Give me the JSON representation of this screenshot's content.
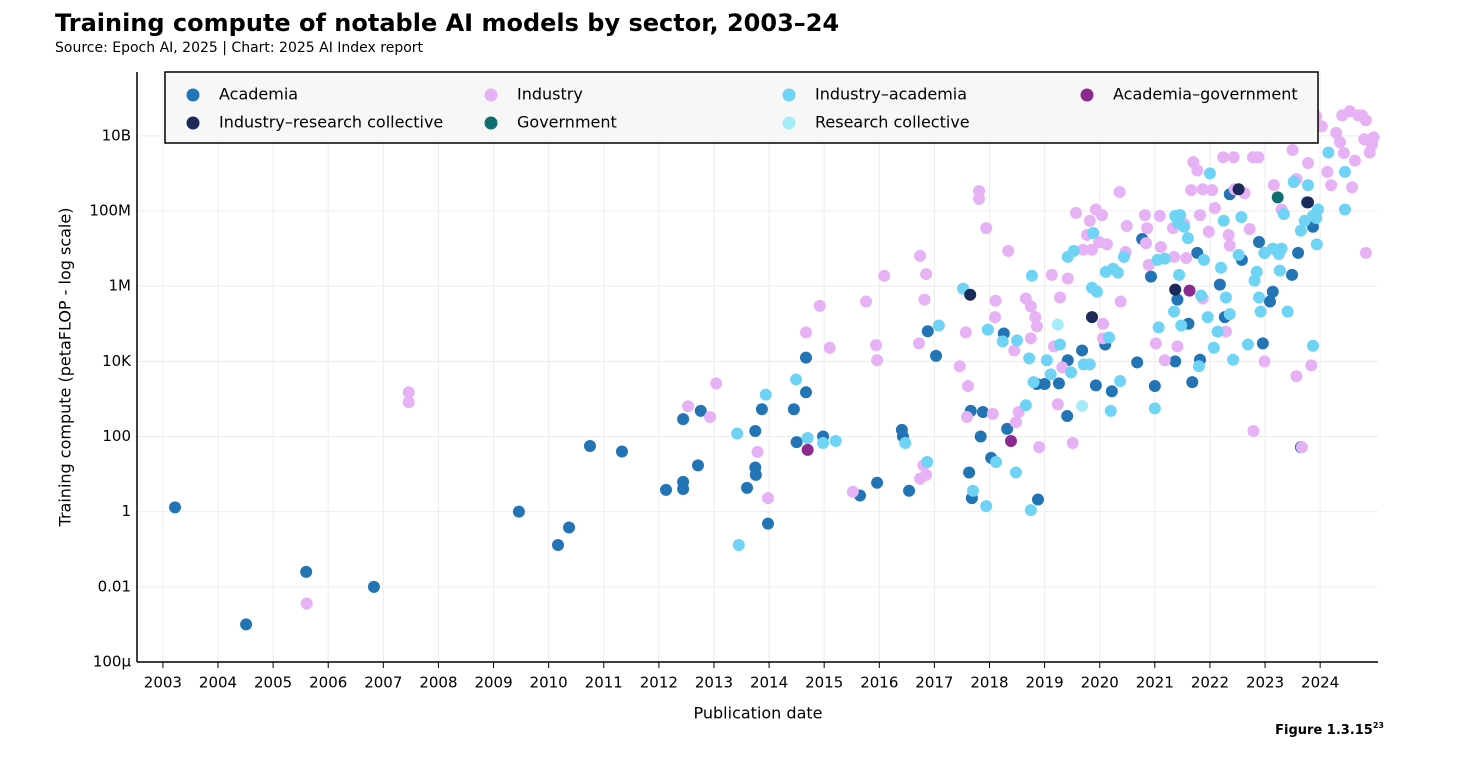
{
  "chart_data": {
    "type": "scatter",
    "title": "Training compute of notable AI models by sector, 2003–24",
    "subtitle": "Source: Epoch AI, 2025 | Chart: 2025 AI Index report",
    "x_label": "Publication date",
    "y_label": "Training compute (petaFLOP - log scale)",
    "figure_label": "Figure 1.3.15",
    "figure_footnote": "23",
    "y_log": true,
    "grid": true,
    "legend_position": "top",
    "xlim": [
      2002.53,
      2025.05
    ],
    "xticks": [
      2003,
      2004,
      2005,
      2006,
      2007,
      2008,
      2009,
      2010,
      2011,
      2012,
      2013,
      2014,
      2015,
      2016,
      2017,
      2018,
      2019,
      2020,
      2021,
      2022,
      2023,
      2024
    ],
    "ylim": [
      0.0001,
      500000000000.0
    ],
    "yticks": [
      {
        "value": 0.0001,
        "label": "100μ"
      },
      0.01,
      1,
      100,
      {
        "value": 10000,
        "label": "10K"
      },
      {
        "value": 1000000,
        "label": "1M"
      },
      {
        "value": 100000000,
        "label": "100M"
      },
      {
        "value": 10000000000,
        "label": "10B"
      }
    ],
    "series": [
      {
        "name": "Academia",
        "color": "#2274b5",
        "x": [
          2003.22,
          2004.51,
          2005.6,
          2006.83,
          2009.46,
          2010.17,
          2010.37,
          2010.75,
          2011.33,
          2012.13,
          2012.44,
          2012.44,
          2012.44,
          2012.71,
          2012.76,
          2013.6,
          2013.75,
          2013.76,
          2013.75,
          2013.87,
          2013.98,
          2014.45,
          2014.5,
          2014.67,
          2014.67,
          2014.98,
          2015.65,
          2015.96,
          2016.41,
          2016.43,
          2016.54,
          2016.88,
          2017.03,
          2017.63,
          2017.66,
          2017.68,
          2017.84,
          2017.88,
          2018.03,
          2018.26,
          2018.32,
          2018.88,
          2018.86,
          2019.0,
          2019.26,
          2019.41,
          2019.42,
          2019.68,
          2019.93,
          2020.1,
          2020.22,
          2020.68,
          2020.77,
          2020.93,
          2021.0,
          2021.37,
          2021.41,
          2021.61,
          2021.68,
          2021.82,
          2021.77,
          2022.18,
          2022.27,
          2022.36,
          2022.58,
          2022.89,
          2022.99,
          2022.96,
          2023.09,
          2023.14,
          2023.49,
          2023.6,
          2023.65,
          2023.76,
          2023.87
        ],
        "values": [
          1.3,
          0.001,
          0.025,
          0.01,
          1,
          0.13,
          0.38,
          56,
          40,
          3.8,
          6.2,
          4,
          290,
          17,
          480,
          4.3,
          15,
          9.5,
          140,
          530,
          0.48,
          530,
          71,
          12600,
          1500,
          100,
          2.7,
          5.9,
          150,
          100,
          3.6,
          63000,
          14000,
          11,
          480,
          2.3,
          100,
          450,
          27,
          55000,
          160,
          2.1,
          2500,
          2500,
          2600,
          350,
          10700,
          19500,
          2300,
          28000,
          1600,
          9400,
          18000000.0,
          1800000.0,
          2200,
          10000,
          440000.0,
          100000.0,
          2800,
          11000,
          7700000.0,
          1100000.0,
          150000.0,
          280000000.0,
          5000000.0,
          15000000.0,
          7700000.0,
          30000,
          390000.0,
          710000.0,
          2000000.0,
          7700000.0,
          52,
          170000000.0,
          38000000.0
        ]
      },
      {
        "name": "Industry",
        "color": "#e6b1f5",
        "x": [
          2007.46,
          2007.46,
          2005.61,
          2012.53,
          2012.93,
          2013.04,
          2013.79,
          2013.98,
          2014.67,
          2014.92,
          2015.1,
          2015.52,
          2015.76,
          2015.94,
          2015.96,
          2016.09,
          2016.74,
          2016.85,
          2016.82,
          2016.72,
          2016.8,
          2016.74,
          2016.85,
          2017.46,
          2017.57,
          2017.61,
          2017.59,
          2017.81,
          2017.81,
          2017.94,
          2018.06,
          2018.11,
          2018.1,
          2018.34,
          2018.45,
          2018.48,
          2018.53,
          2018.66,
          2018.75,
          2018.83,
          2018.86,
          2018.75,
          2018.9,
          2019.13,
          2019.17,
          2019.24,
          2019.28,
          2019.32,
          2019.42,
          2019.51,
          2019.57,
          2019.7,
          2019.77,
          2019.82,
          2019.86,
          2019.93,
          2019.99,
          2020.04,
          2020.06,
          2020.06,
          2020.13,
          2020.36,
          2020.38,
          2020.47,
          2020.49,
          2020.82,
          2020.86,
          2020.84,
          2020.89,
          2021.02,
          2021.09,
          2021.11,
          2021.18,
          2021.33,
          2021.35,
          2021.41,
          2021.53,
          2021.57,
          2021.66,
          2021.7,
          2021.77,
          2021.82,
          2021.87,
          2021.87,
          2021.98,
          2022.04,
          2022.09,
          2022.24,
          2022.34,
          2022.36,
          2022.29,
          2022.43,
          2022.45,
          2022.63,
          2022.78,
          2022.88,
          2022.79,
          2022.72,
          2022.99,
          2023.16,
          2023.3,
          2023.5,
          2023.57,
          2023.57,
          2023.67,
          2023.78,
          2023.84,
          2023.93,
          2024.03,
          2024.13,
          2024.2,
          2024.29,
          2024.36,
          2024.4,
          2024.43,
          2024.58,
          2024.63,
          2024.69,
          2024.76,
          2024.8,
          2024.83,
          2024.9,
          2024.94,
          2024.97,
          2024.54,
          2024.83
        ],
        "values": [
          1500,
          820,
          0.0036,
          640,
          330,
          2600,
          39,
          2.3,
          59000,
          300000.0,
          23000,
          3.4,
          390000.0,
          27000,
          10700,
          1900000.0,
          6400000.0,
          2100000.0,
          440000.0,
          30000,
          17,
          7.5,
          9.5,
          7400,
          59000,
          2200,
          330,
          340000000.0,
          210000000.0,
          35000000.0,
          400,
          410000.0,
          150000.0,
          8700000.0,
          19500,
          240,
          450,
          470000.0,
          290000.0,
          150000.0,
          85000,
          41000,
          52,
          2000000.0,
          25000,
          720,
          500000.0,
          6900,
          1600000.0,
          67,
          89000000.0,
          9300000.0,
          23000000.0,
          55000000.0,
          9300000.0,
          110000000.0,
          15000000.0,
          78000000.0,
          100000.0,
          41000,
          13000000.0,
          320000000.0,
          390000.0,
          8100000.0,
          40000000.0,
          78000000.0,
          35000000.0,
          14000000.0,
          3700000.0,
          30000,
          74000000.0,
          11000000.0,
          10700,
          35000000.0,
          6000000.0,
          25000,
          46000000.0,
          5600000.0,
          360000000.0,
          2000000000.0,
          1200000000.0,
          78000000.0,
          380000000.0,
          470000.0,
          28000000.0,
          360000000.0,
          120000000.0,
          2700000000.0,
          23000000.0,
          12000000.0,
          62000,
          2700000000.0,
          380000000.0,
          300000000.0,
          2700000000.0,
          2700000000.0,
          140,
          33000000.0,
          10000,
          490000000.0,
          110000000.0,
          4200000000.0,
          710000000.0,
          4000,
          52,
          1900000000.0,
          7800,
          33000000000.0,
          18000000000.0,
          1100000000.0,
          490000000.0,
          12000000000.0,
          6800000000.0,
          35000000000.0,
          3500000000.0,
          430000000.0,
          2200000000.0,
          35000000000.0,
          35000000000.0,
          8100000000.0,
          7700000.0,
          3600000000.0,
          5900000000.0,
          9100000000.0,
          45000000000.0,
          26000000000.0
        ]
      },
      {
        "name": "Industry–academia",
        "color": "#6fd3f5",
        "x": [
          2013.45,
          2013.42,
          2013.94,
          2014.49,
          2014.7,
          2014.98,
          2015.21,
          2016.47,
          2016.87,
          2017.08,
          2017.52,
          2017.7,
          2017.94,
          2018.12,
          2017.97,
          2018.24,
          2018.5,
          2018.48,
          2018.66,
          2018.75,
          2018.77,
          2018.8,
          2018.72,
          2019.04,
          2019.11,
          2019.28,
          2019.42,
          2019.48,
          2019.53,
          2019.71,
          2019.82,
          2019.86,
          2019.95,
          2019.88,
          2020.11,
          2020.17,
          2020.2,
          2020.24,
          2020.33,
          2020.37,
          2020.44,
          2021.0,
          2021.07,
          2021.05,
          2021.18,
          2021.35,
          2021.44,
          2021.37,
          2021.42,
          2021.53,
          2021.6,
          2021.46,
          2021.48,
          2021.8,
          2021.84,
          2021.89,
          2021.96,
          2022.0,
          2022.07,
          2022.14,
          2022.2,
          2022.25,
          2022.29,
          2022.36,
          2022.42,
          2022.52,
          2022.57,
          2022.69,
          2022.81,
          2022.85,
          2022.89,
          2022.92,
          2022.99,
          2023.14,
          2023.25,
          2023.3,
          2023.34,
          2023.41,
          2023.27,
          2023.52,
          2023.65,
          2023.72,
          2023.78,
          2023.87,
          2023.93,
          2023.96,
          2023.87,
          2024.15,
          2023.94,
          2024.45,
          2024.45
        ],
        "values": [
          0.13,
          120,
          1300,
          3300,
          91,
          67,
          76,
          67,
          21,
          90000,
          860000.0,
          3.6,
          1.4,
          21,
          70000,
          34000,
          36000,
          11,
          680,
          1.1,
          1900000.0,
          2800,
          12000,
          10700,
          4500,
          28000,
          6000000.0,
          5100,
          8700000.0,
          8300,
          8300,
          910000.0,
          710000.0,
          26000000.0,
          2400000.0,
          43000,
          480,
          2900000.0,
          2300000.0,
          3000,
          6000000.0,
          560,
          80000,
          5000000.0,
          5400000.0,
          210000.0,
          2000000.0,
          74000000.0,
          48000000.0,
          38000000.0,
          19000000.0,
          78000000.0,
          90000,
          7400,
          560000.0,
          5000000.0,
          150000.0,
          1000000000.0,
          23000,
          62000,
          3100000.0,
          55000000.0,
          500000.0,
          180000.0,
          11000,
          6800000.0,
          69000000.0,
          28000,
          1400000.0,
          2400000.0,
          500000.0,
          210000.0,
          7700000.0,
          10000000.0,
          7200000.0,
          10000000.0,
          83000000.0,
          210000.0,
          2600000.0,
          590000000.0,
          30000000.0,
          55000000.0,
          490000000.0,
          74000000.0,
          65000000.0,
          110000000.0,
          26000,
          3600000000.0,
          13000000.0,
          1100000000.0,
          110000000.0
        ]
      },
      {
        "name": "Academia–government",
        "color": "#8b2a8f",
        "x": [
          2014.7,
          2018.39,
          2021.63
        ],
        "values": [
          44,
          76,
          760000.0
        ]
      },
      {
        "name": "Industry–research collective",
        "color": "#1c2a5a",
        "x": [
          2017.65,
          2019.86,
          2021.37,
          2022.52,
          2023.78
        ],
        "values": [
          590000.0,
          150000.0,
          810000.0,
          380000000.0,
          170000000.0
        ]
      },
      {
        "name": "Government",
        "color": "#0f6e6e",
        "x": [
          2023.23,
          2023.67
        ],
        "values": [
          230000000.0,
          20000000000.0
        ]
      },
      {
        "name": "Research collective",
        "color": "#a6ecf8",
        "x": [
          2019.68,
          2019.24
        ],
        "values": [
          650,
          95000
        ]
      }
    ]
  }
}
